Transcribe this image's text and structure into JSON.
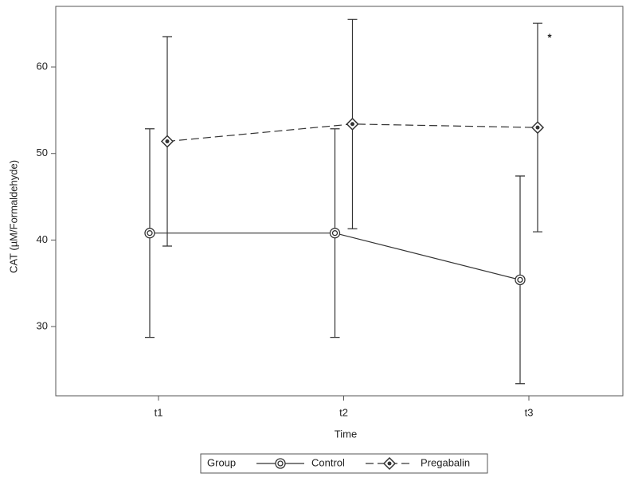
{
  "chart_data": {
    "type": "line",
    "x_label": "Time",
    "y_label": "CAT (µM/Formaldehyde)",
    "categories": [
      "t1",
      "t2",
      "t3"
    ],
    "series": [
      {
        "name": "Control",
        "color": "#333333",
        "line_style": "solid",
        "marker": "circle",
        "values": [
          40.8,
          40.8,
          35.4
        ],
        "errors": [
          12.05,
          12.05,
          12.0
        ]
      },
      {
        "name": "Pregabalin",
        "color": "#333333",
        "line_style": "dashed",
        "marker": "diamond",
        "values": [
          51.4,
          53.4,
          53.0
        ],
        "errors": [
          12.1,
          12.1,
          12.05
        ]
      }
    ],
    "ylim": [
      22,
      67
    ],
    "yticks": [
      30,
      40,
      50,
      60
    ],
    "legend_title": "Group",
    "legend_position": "bottom",
    "annotation": "*"
  }
}
